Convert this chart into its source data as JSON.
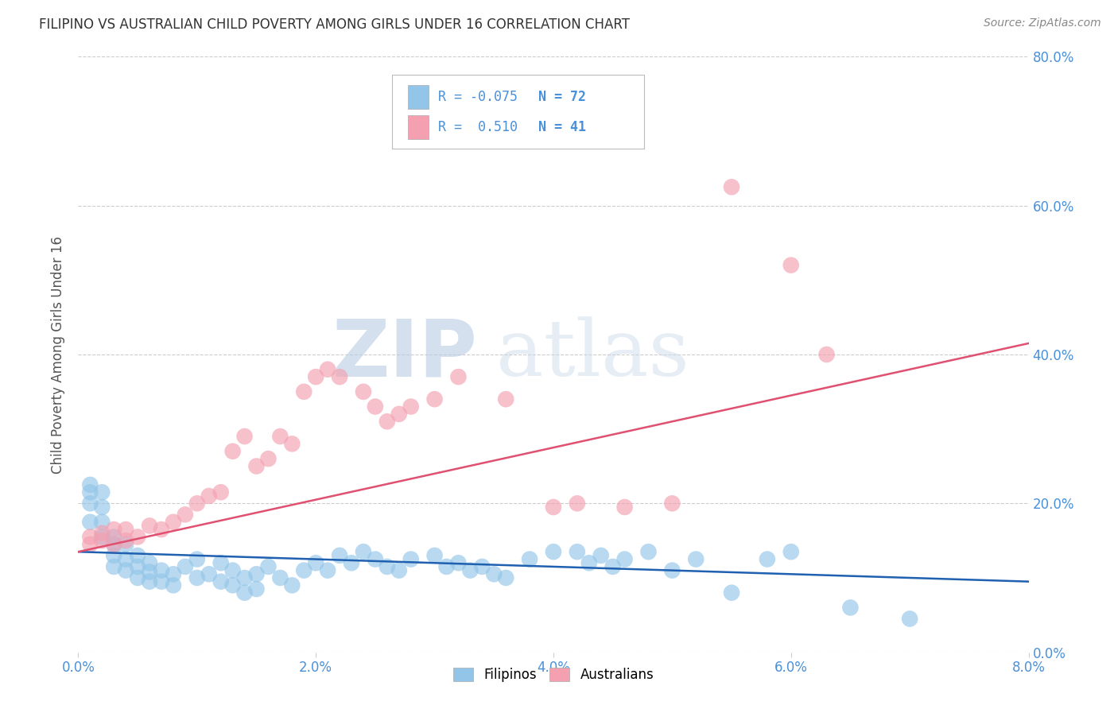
{
  "title": "FILIPINO VS AUSTRALIAN CHILD POVERTY AMONG GIRLS UNDER 16 CORRELATION CHART",
  "source": "Source: ZipAtlas.com",
  "ylabel": "Child Poverty Among Girls Under 16",
  "xlim": [
    0.0,
    0.08
  ],
  "ylim": [
    0.0,
    0.8
  ],
  "yticks": [
    0.0,
    0.2,
    0.4,
    0.6,
    0.8
  ],
  "ytick_labels": [
    "0.0%",
    "20.0%",
    "40.0%",
    "60.0%",
    "80.0%"
  ],
  "xticks": [
    0.0,
    0.02,
    0.04,
    0.06,
    0.08
  ],
  "xtick_labels": [
    "0.0%",
    "2.0%",
    "4.0%",
    "6.0%",
    "8.0%"
  ],
  "filipino_R": -0.075,
  "filipino_N": 72,
  "australian_R": 0.51,
  "australian_N": 41,
  "filipino_color": "#92C5E8",
  "australian_color": "#F4A0B0",
  "filipino_line_color": "#2060B0",
  "australian_line_color": "#E05070",
  "background_color": "#FFFFFF",
  "grid_color": "#CCCCCC",
  "axis_label_color": "#4A90D9",
  "watermark_zip": "ZIP",
  "watermark_atlas": "atlas",
  "filipino_x": [
    0.001,
    0.001,
    0.001,
    0.001,
    0.002,
    0.002,
    0.002,
    0.002,
    0.003,
    0.003,
    0.003,
    0.003,
    0.004,
    0.004,
    0.004,
    0.005,
    0.005,
    0.005,
    0.006,
    0.006,
    0.006,
    0.007,
    0.007,
    0.008,
    0.008,
    0.009,
    0.01,
    0.01,
    0.011,
    0.012,
    0.012,
    0.013,
    0.013,
    0.014,
    0.014,
    0.015,
    0.015,
    0.016,
    0.017,
    0.018,
    0.019,
    0.02,
    0.021,
    0.022,
    0.023,
    0.024,
    0.025,
    0.026,
    0.027,
    0.028,
    0.03,
    0.031,
    0.032,
    0.033,
    0.034,
    0.035,
    0.036,
    0.038,
    0.04,
    0.042,
    0.043,
    0.044,
    0.045,
    0.046,
    0.048,
    0.05,
    0.052,
    0.055,
    0.058,
    0.06,
    0.065,
    0.07
  ],
  "filipino_y": [
    0.225,
    0.215,
    0.2,
    0.175,
    0.215,
    0.195,
    0.175,
    0.155,
    0.155,
    0.145,
    0.13,
    0.115,
    0.145,
    0.125,
    0.11,
    0.13,
    0.115,
    0.1,
    0.12,
    0.108,
    0.095,
    0.11,
    0.095,
    0.105,
    0.09,
    0.115,
    0.125,
    0.1,
    0.105,
    0.12,
    0.095,
    0.11,
    0.09,
    0.1,
    0.08,
    0.105,
    0.085,
    0.115,
    0.1,
    0.09,
    0.11,
    0.12,
    0.11,
    0.13,
    0.12,
    0.135,
    0.125,
    0.115,
    0.11,
    0.125,
    0.13,
    0.115,
    0.12,
    0.11,
    0.115,
    0.105,
    0.1,
    0.125,
    0.135,
    0.135,
    0.12,
    0.13,
    0.115,
    0.125,
    0.135,
    0.11,
    0.125,
    0.08,
    0.125,
    0.135,
    0.06,
    0.045
  ],
  "australian_x": [
    0.001,
    0.001,
    0.002,
    0.002,
    0.003,
    0.003,
    0.004,
    0.004,
    0.005,
    0.006,
    0.007,
    0.008,
    0.009,
    0.01,
    0.011,
    0.012,
    0.013,
    0.014,
    0.015,
    0.016,
    0.017,
    0.018,
    0.019,
    0.02,
    0.021,
    0.022,
    0.024,
    0.025,
    0.026,
    0.027,
    0.028,
    0.03,
    0.032,
    0.036,
    0.04,
    0.042,
    0.046,
    0.05,
    0.055,
    0.06,
    0.063
  ],
  "australian_y": [
    0.155,
    0.145,
    0.16,
    0.15,
    0.165,
    0.145,
    0.165,
    0.15,
    0.155,
    0.17,
    0.165,
    0.175,
    0.185,
    0.2,
    0.21,
    0.215,
    0.27,
    0.29,
    0.25,
    0.26,
    0.29,
    0.28,
    0.35,
    0.37,
    0.38,
    0.37,
    0.35,
    0.33,
    0.31,
    0.32,
    0.33,
    0.34,
    0.37,
    0.34,
    0.195,
    0.2,
    0.195,
    0.2,
    0.625,
    0.52,
    0.4
  ],
  "legend_R_fil": "R = -0.075",
  "legend_N_fil": "N = 72",
  "legend_R_aus": "R =  0.510",
  "legend_N_aus": "N = 41"
}
